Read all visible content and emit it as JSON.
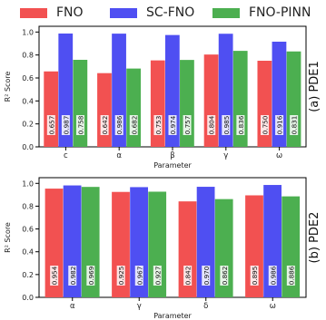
{
  "legend": {
    "items": [
      {
        "label": "FNO",
        "color": "#f25151"
      },
      {
        "label": "SC-FNO",
        "color": "#4f4ff2"
      },
      {
        "label": "FNO-PINN",
        "color": "#4caf50"
      }
    ]
  },
  "chart_data": [
    {
      "type": "bar",
      "panel_label": "(a) PDE1",
      "categories": [
        "c",
        "α",
        "β",
        "γ",
        "ω"
      ],
      "series": [
        {
          "name": "FNO",
          "color": "#f25151",
          "values": [
            0.657,
            0.642,
            0.753,
            0.804,
            0.75
          ],
          "labels": [
            "0.657",
            "0.642",
            "0.753",
            "0.804",
            "0.750"
          ]
        },
        {
          "name": "SC-FNO",
          "color": "#4f4ff2",
          "values": [
            0.987,
            0.986,
            0.974,
            0.985,
            0.916
          ],
          "labels": [
            "0.987",
            "0.986",
            "0.974",
            "0.985",
            "0.916"
          ]
        },
        {
          "name": "FNO-PINN",
          "color": "#4caf50",
          "values": [
            0.758,
            0.682,
            0.757,
            0.836,
            0.831
          ],
          "labels": [
            "0.758",
            "0.682",
            "0.757",
            "0.836",
            "0.831"
          ]
        }
      ],
      "xlabel": "Parameter",
      "ylabel": "R² Score",
      "ylim": [
        0,
        1.05
      ],
      "yticks": [
        "0.0",
        "0.2",
        "0.4",
        "0.6",
        "0.8",
        "1.0"
      ]
    },
    {
      "type": "bar",
      "panel_label": "(b) PDE2",
      "categories": [
        "α",
        "γ",
        "δ",
        "ω"
      ],
      "series": [
        {
          "name": "FNO",
          "color": "#f25151",
          "values": [
            0.954,
            0.925,
            0.842,
            0.895
          ],
          "labels": [
            "0.954",
            "0.925",
            "0.842",
            "0.895"
          ]
        },
        {
          "name": "SC-FNO",
          "color": "#4f4ff2",
          "values": [
            0.982,
            0.967,
            0.97,
            0.986
          ],
          "labels": [
            "0.982",
            "0.967",
            "0.970",
            "0.986"
          ]
        },
        {
          "name": "FNO-PINN",
          "color": "#4caf50",
          "values": [
            0.969,
            0.927,
            0.862,
            0.886
          ],
          "labels": [
            "0.969",
            "0.927",
            "0.862",
            "0.886"
          ]
        }
      ],
      "xlabel": "Parameter",
      "ylabel": "R² Score",
      "ylim": [
        0,
        1.05
      ],
      "yticks": [
        "0.0",
        "0.2",
        "0.4",
        "0.6",
        "0.8",
        "1.0"
      ]
    }
  ]
}
